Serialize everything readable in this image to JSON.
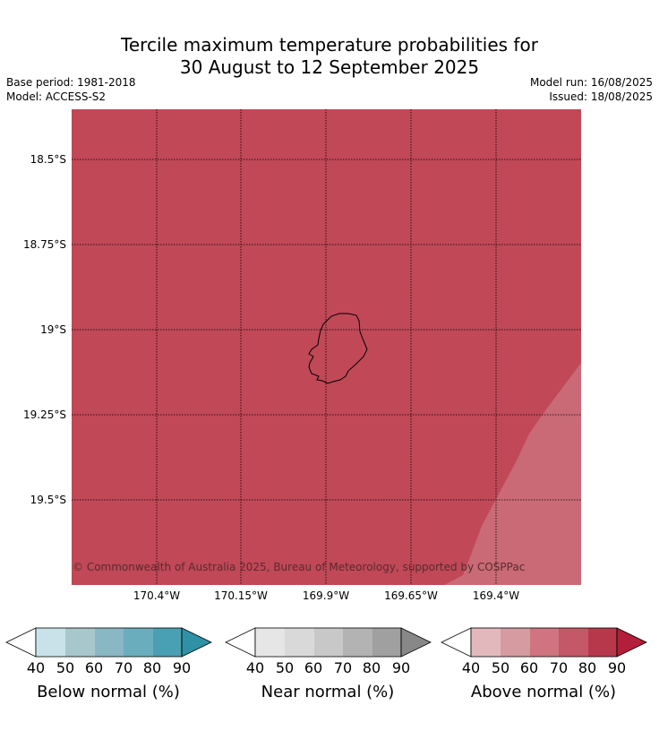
{
  "title_line1": "Tercile maximum temperature probabilities for",
  "title_line2": "30 August to 12 September 2025",
  "base_period": "Base period: 1981-2018",
  "model": "Model: ACCESS-S2",
  "model_run": "Model run: 16/08/2025",
  "issued": "Issued: 18/08/2025",
  "copyright": "© Commonwealth of Australia 2025, Bureau of Meteorology, supported by COSPPac",
  "lat_labels": [
    "18.5°S",
    "18.75°S",
    "19°S",
    "19.25°S",
    "19.5°S"
  ],
  "lon_labels": [
    "170.4°W",
    "170.15°W",
    "169.9°W",
    "169.65°W",
    "169.4°W"
  ],
  "colors": {
    "above_main": "#c04857",
    "above_light": "#ca6a76",
    "below": [
      "#c9e2e9",
      "#a8c7cc",
      "#8ab7c4",
      "#6aaebd",
      "#49a0b2",
      "#2f91a6"
    ],
    "near": [
      "#e6e6e6",
      "#d9d9d9",
      "#c8c8c8",
      "#b3b3b3",
      "#a0a0a0",
      "#888888"
    ],
    "above": [
      "#e3b8bd",
      "#d69aa1",
      "#cf7480",
      "#c55866",
      "#b8384b",
      "#b31e3a"
    ]
  },
  "colorbars": [
    {
      "label": "Below normal (%)",
      "ticks": [
        "40",
        "50",
        "60",
        "70",
        "80",
        "90"
      ]
    },
    {
      "label": "Near normal (%)",
      "ticks": [
        "40",
        "50",
        "60",
        "70",
        "80",
        "90"
      ]
    },
    {
      "label": "Above normal (%)",
      "ticks": [
        "40",
        "50",
        "60",
        "70",
        "80",
        "90"
      ]
    }
  ]
}
